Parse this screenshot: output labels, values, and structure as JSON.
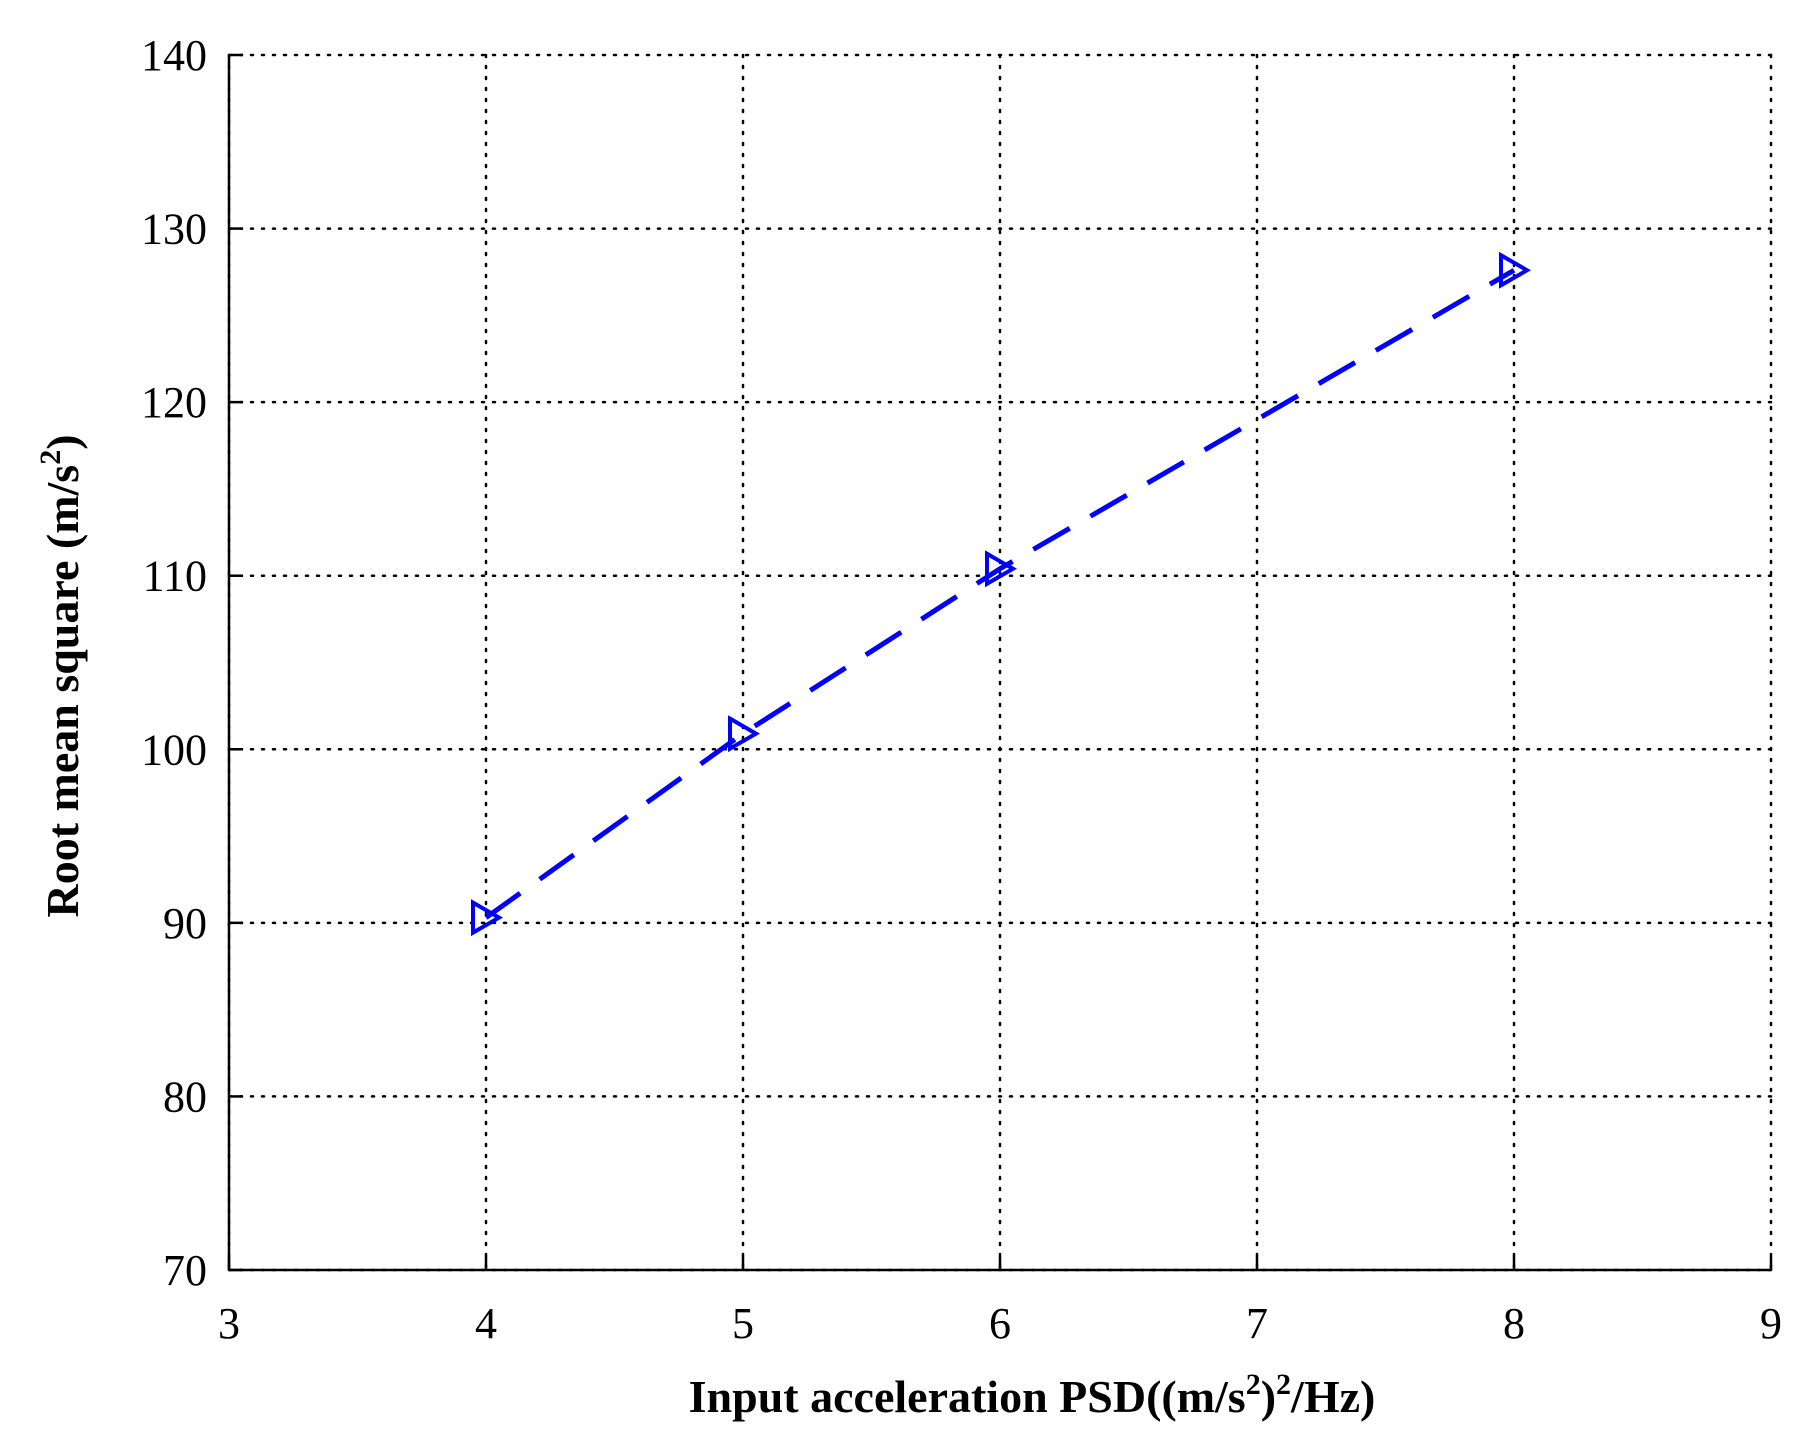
{
  "chart_data": {
    "type": "line",
    "title": "",
    "xlabel": "Input acceleration PSD((m/s2)2/Hz)",
    "ylabel": "Root mean square (m/s2)",
    "xlim": [
      3,
      9
    ],
    "ylim": [
      70,
      140
    ],
    "x_ticks": [
      3,
      4,
      5,
      6,
      7,
      8,
      9
    ],
    "y_ticks": [
      70,
      80,
      90,
      100,
      110,
      120,
      130,
      140
    ],
    "grid": true,
    "legend": "none",
    "series": [
      {
        "x": [
          4,
          5,
          6,
          8
        ],
        "y": [
          90.3,
          100.9,
          110.4,
          127.6
        ],
        "color": "#0000ff",
        "line_style": "dashed",
        "marker": "triangle-right"
      }
    ]
  }
}
